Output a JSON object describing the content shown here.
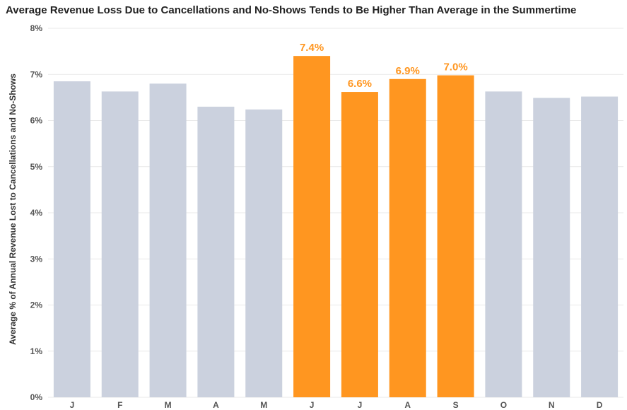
{
  "chart_data": {
    "type": "bar",
    "title": "Average Revenue Loss Due to Cancellations and No-Shows Tends to Be Higher Than Average in the Summertime",
    "xlabel": "",
    "ylabel": "Average % of Annual Revenue Lost to Cancellations and No-Shows",
    "categories": [
      "J",
      "F",
      "M",
      "A",
      "M",
      "J",
      "J",
      "A",
      "S",
      "O",
      "N",
      "D"
    ],
    "values": [
      6.85,
      6.63,
      6.8,
      6.3,
      6.24,
      7.4,
      6.62,
      6.9,
      6.98,
      6.63,
      6.49,
      6.52
    ],
    "data_labels": [
      "",
      "",
      "",
      "",
      "",
      "7.4%",
      "6.6%",
      "6.9%",
      "7.0%",
      "",
      "",
      ""
    ],
    "highlighted": [
      false,
      false,
      false,
      false,
      false,
      true,
      true,
      true,
      true,
      false,
      false,
      false
    ],
    "ylim": [
      0,
      8
    ],
    "yticks": [
      "0%",
      "1%",
      "2%",
      "3%",
      "4%",
      "5%",
      "6%",
      "7%",
      "8%"
    ],
    "grid": true,
    "legend": "none",
    "colors": {
      "default": "#cbd1de",
      "highlight": "#ff9620",
      "label": "#ff9620",
      "grid": "#e9e9e9"
    }
  }
}
